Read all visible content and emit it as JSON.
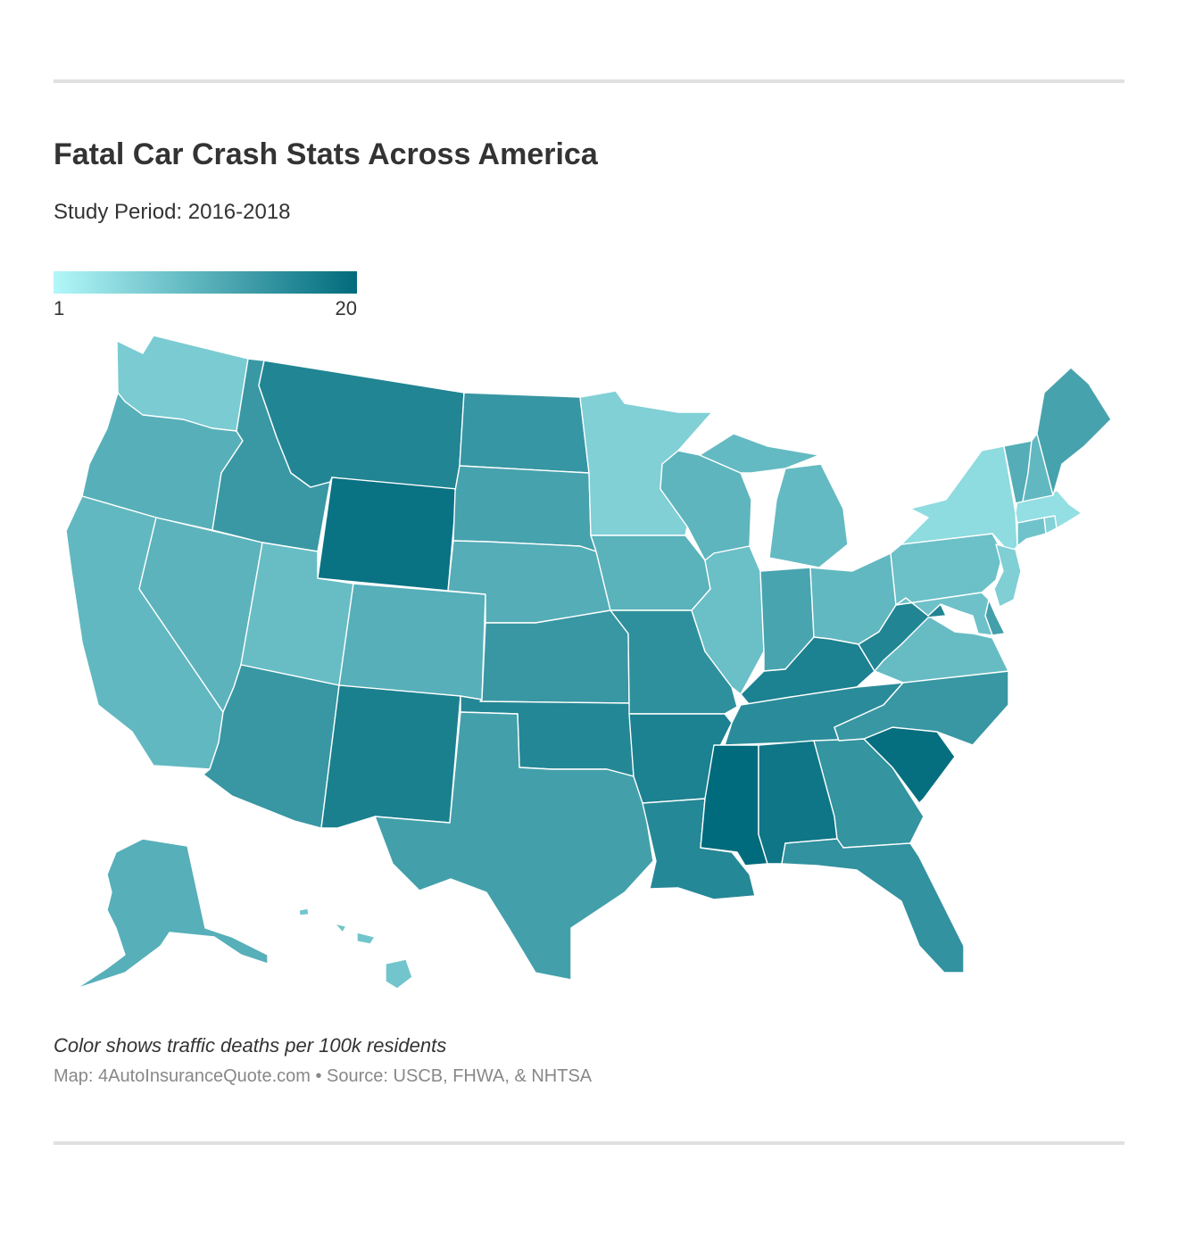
{
  "header": {
    "title": "Fatal Car Crash Stats Across America",
    "subtitle": "Study Period: 2016-2018"
  },
  "legend": {
    "min_label": "1",
    "max_label": "20",
    "min_value": 1,
    "max_value": 20,
    "color_low": "#b2f7f9",
    "color_high": "#006b7c"
  },
  "footer": {
    "note": "Color shows traffic deaths per 100k residents",
    "credit": "Map: 4AutoInsuranceQuote.com • Source: USCB, FHWA, & NHTSA"
  },
  "chart_data": {
    "type": "choropleth",
    "measure": "traffic deaths per 100k residents",
    "scale": [
      1,
      20
    ],
    "states": [
      {
        "id": "WA",
        "value": 7.0
      },
      {
        "id": "OR",
        "value": 10.7
      },
      {
        "id": "CA",
        "value": 9.5
      },
      {
        "id": "NV",
        "value": 10.2
      },
      {
        "id": "ID",
        "value": 13.9
      },
      {
        "id": "MT",
        "value": 16.5
      },
      {
        "id": "WY",
        "value": 19.0
      },
      {
        "id": "UT",
        "value": 8.9
      },
      {
        "id": "AZ",
        "value": 14.0
      },
      {
        "id": "CO",
        "value": 10.8
      },
      {
        "id": "NM",
        "value": 17.2
      },
      {
        "id": "ND",
        "value": 14.1
      },
      {
        "id": "SD",
        "value": 12.5
      },
      {
        "id": "NE",
        "value": 11.0
      },
      {
        "id": "KS",
        "value": 14.0
      },
      {
        "id": "OK",
        "value": 16.2
      },
      {
        "id": "TX",
        "value": 12.8
      },
      {
        "id": "MN",
        "value": 6.3
      },
      {
        "id": "IA",
        "value": 10.4
      },
      {
        "id": "MO",
        "value": 15.0
      },
      {
        "id": "AR",
        "value": 17.0
      },
      {
        "id": "LA",
        "value": 16.0
      },
      {
        "id": "WI",
        "value": 10.0
      },
      {
        "id": "IL",
        "value": 8.6
      },
      {
        "id": "MI",
        "value": 9.3
      },
      {
        "id": "IN",
        "value": 12.3
      },
      {
        "id": "OH",
        "value": 9.6
      },
      {
        "id": "KY",
        "value": 17.0
      },
      {
        "id": "TN",
        "value": 15.5
      },
      {
        "id": "MS",
        "value": 20.0
      },
      {
        "id": "AL",
        "value": 18.5
      },
      {
        "id": "GA",
        "value": 14.5
      },
      {
        "id": "FL",
        "value": 14.7
      },
      {
        "id": "SC",
        "value": 19.5
      },
      {
        "id": "NC",
        "value": 14.0
      },
      {
        "id": "VA",
        "value": 9.0
      },
      {
        "id": "WV",
        "value": 16.5
      },
      {
        "id": "PA",
        "value": 8.5
      },
      {
        "id": "NY",
        "value": 4.8
      },
      {
        "id": "VT",
        "value": 11.0
      },
      {
        "id": "NH",
        "value": 9.6
      },
      {
        "id": "ME",
        "value": 12.5
      },
      {
        "id": "MA",
        "value": 4.3
      },
      {
        "id": "RI",
        "value": 6.0
      },
      {
        "id": "CT",
        "value": 8.0
      },
      {
        "id": "NJ",
        "value": 6.4
      },
      {
        "id": "DE",
        "value": 12.8
      },
      {
        "id": "MD",
        "value": 8.3
      },
      {
        "id": "AK",
        "value": 10.8
      },
      {
        "id": "HI",
        "value": 7.8
      }
    ]
  }
}
